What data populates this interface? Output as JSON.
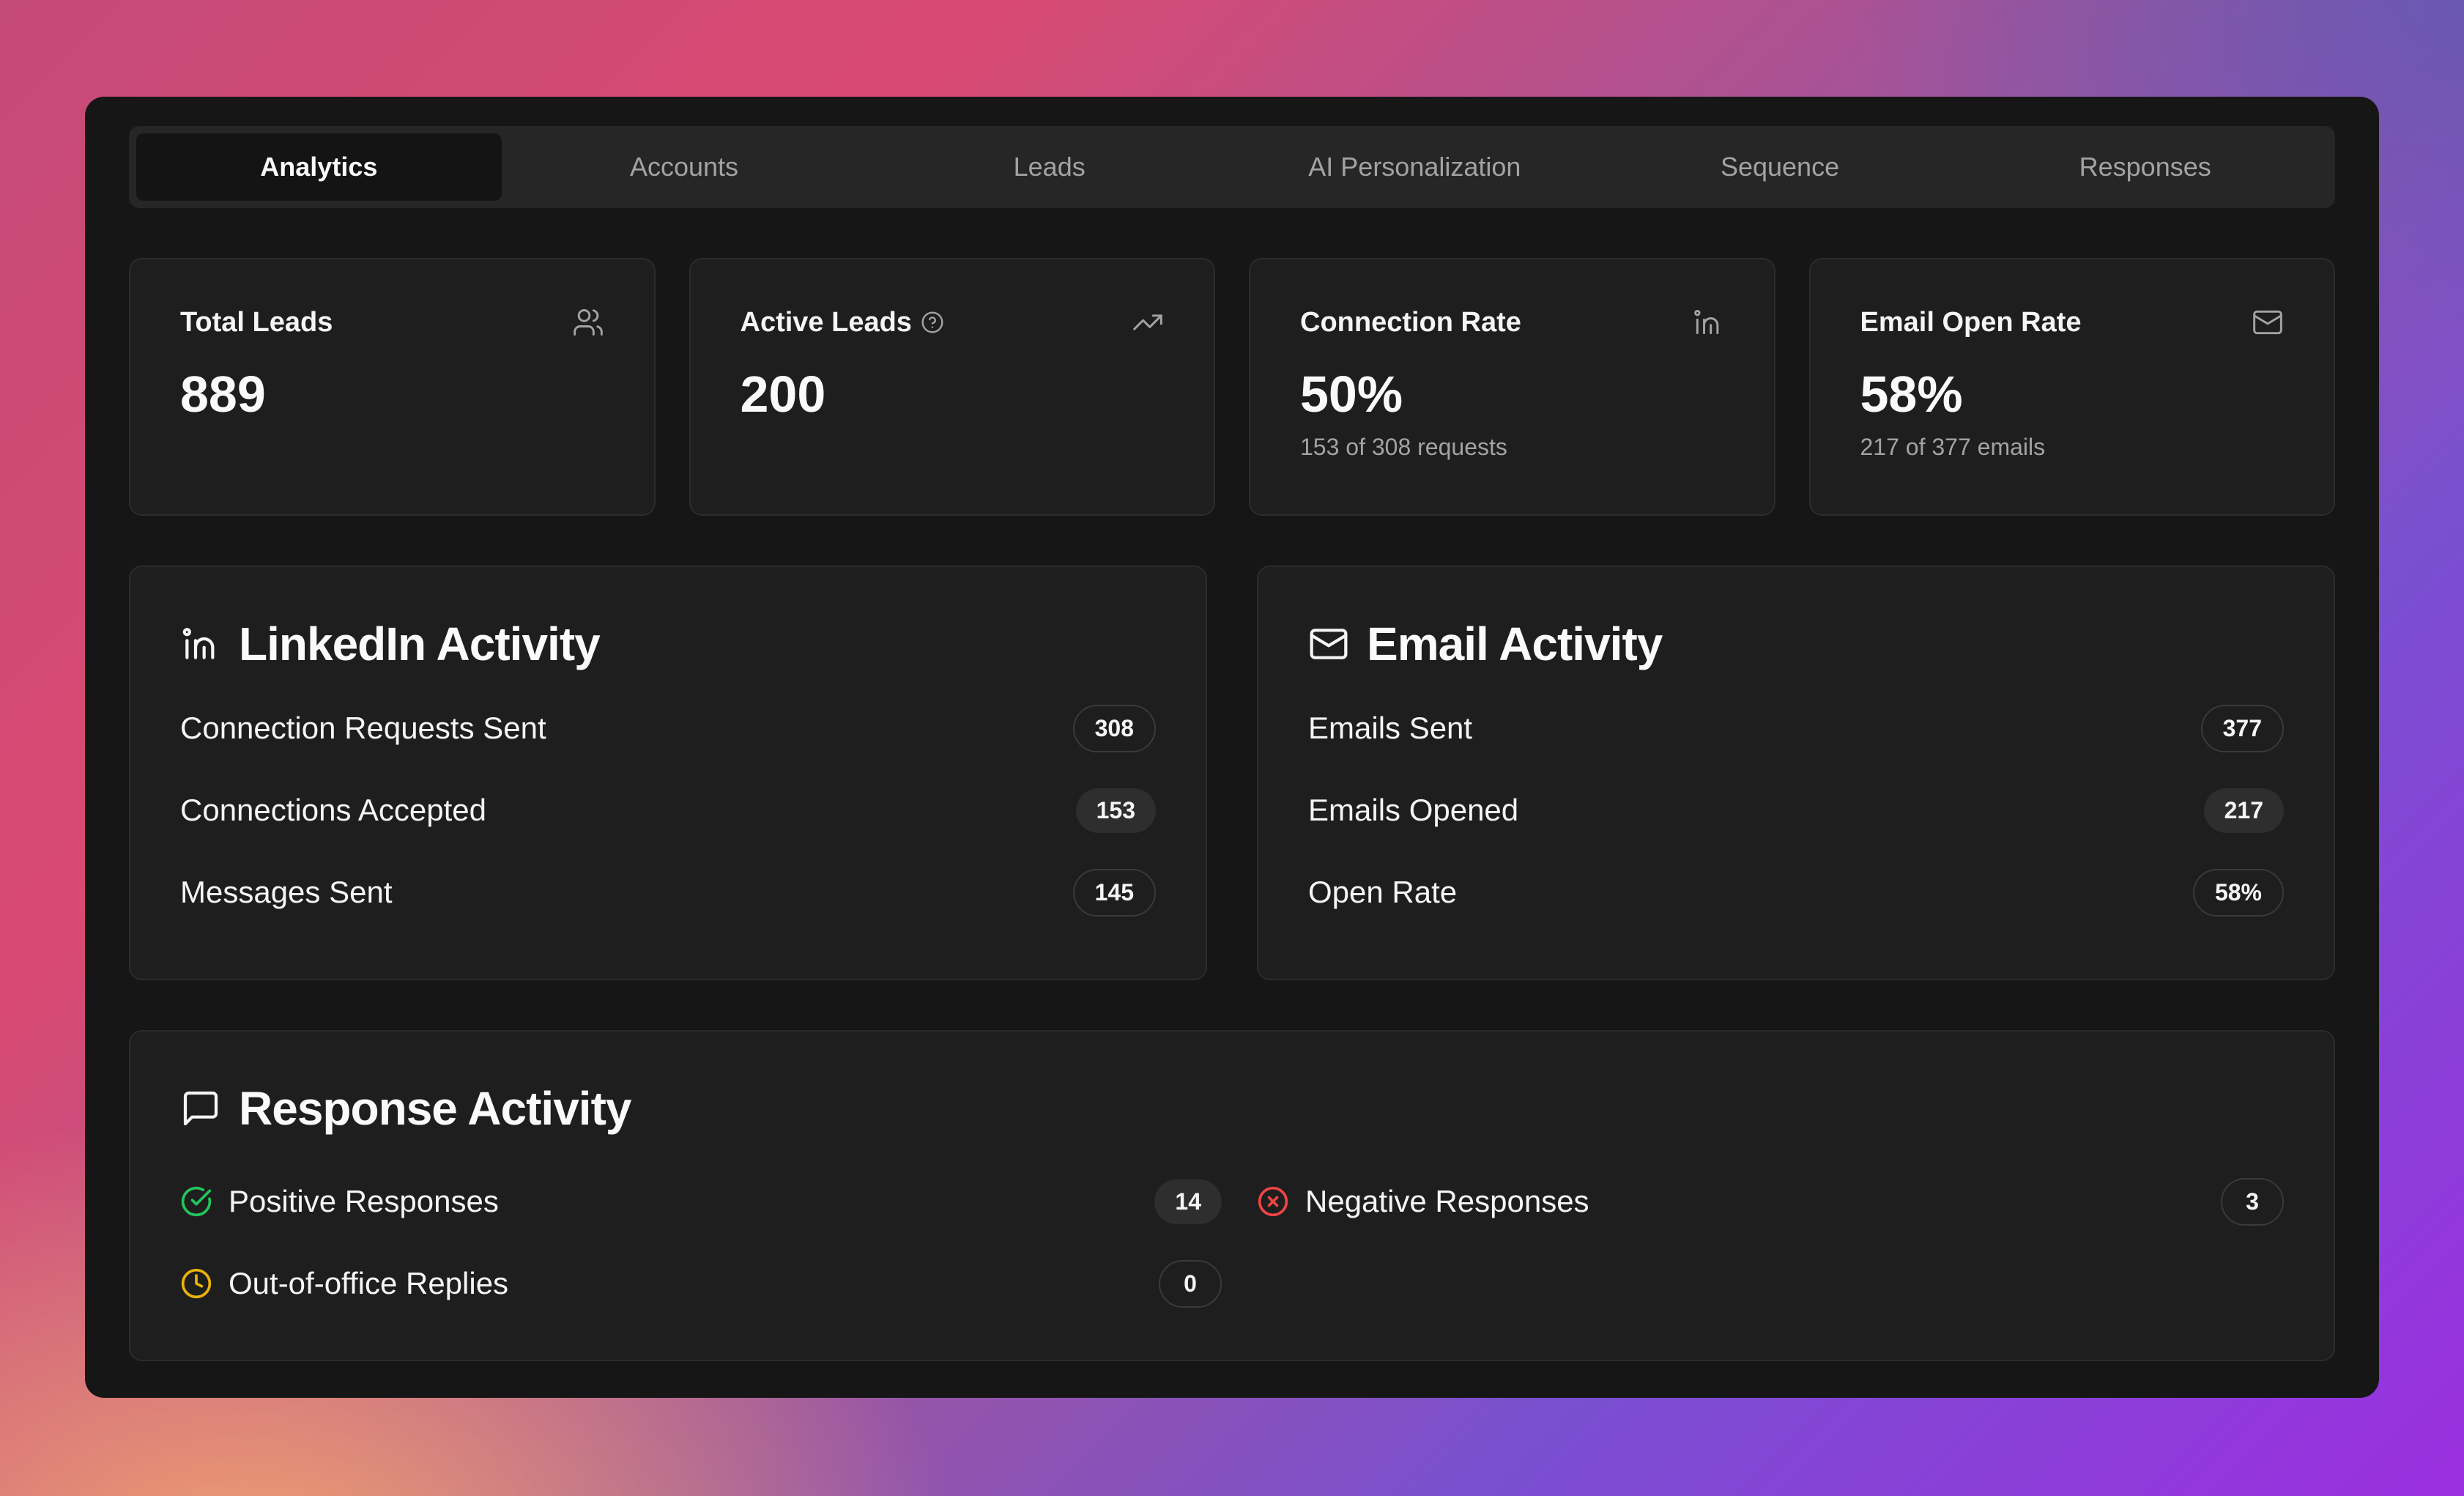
{
  "tabs": [
    {
      "label": "Analytics",
      "active": true
    },
    {
      "label": "Accounts",
      "active": false
    },
    {
      "label": "Leads",
      "active": false
    },
    {
      "label": "AI Personalization",
      "active": false
    },
    {
      "label": "Sequence",
      "active": false
    },
    {
      "label": "Responses",
      "active": false
    }
  ],
  "stats": {
    "total_leads": {
      "label": "Total Leads",
      "value": "889",
      "icon": "users-icon"
    },
    "active_leads": {
      "label": "Active Leads",
      "value": "200",
      "icon": "trending-up-icon"
    },
    "connection_rate": {
      "label": "Connection Rate",
      "value": "50%",
      "sub": "153 of 308 requests",
      "icon": "linkedin-icon"
    },
    "email_open_rate": {
      "label": "Email Open Rate",
      "value": "58%",
      "sub": "217 of 377 emails",
      "icon": "mail-icon"
    }
  },
  "linkedin": {
    "title": "LinkedIn Activity",
    "metrics": [
      {
        "label": "Connection Requests Sent",
        "value": "308"
      },
      {
        "label": "Connections Accepted",
        "value": "153"
      },
      {
        "label": "Messages Sent",
        "value": "145"
      }
    ]
  },
  "email": {
    "title": "Email Activity",
    "metrics": [
      {
        "label": "Emails Sent",
        "value": "377"
      },
      {
        "label": "Emails Opened",
        "value": "217"
      },
      {
        "label": "Open Rate",
        "value": "58%"
      }
    ]
  },
  "responses": {
    "title": "Response Activity",
    "positive": {
      "label": "Positive Responses",
      "value": "14",
      "color": "#22c55e"
    },
    "negative": {
      "label": "Negative Responses",
      "value": "3",
      "color": "#ef4444"
    },
    "ooo": {
      "label": "Out-of-office Replies",
      "value": "0",
      "color": "#eab308"
    }
  }
}
